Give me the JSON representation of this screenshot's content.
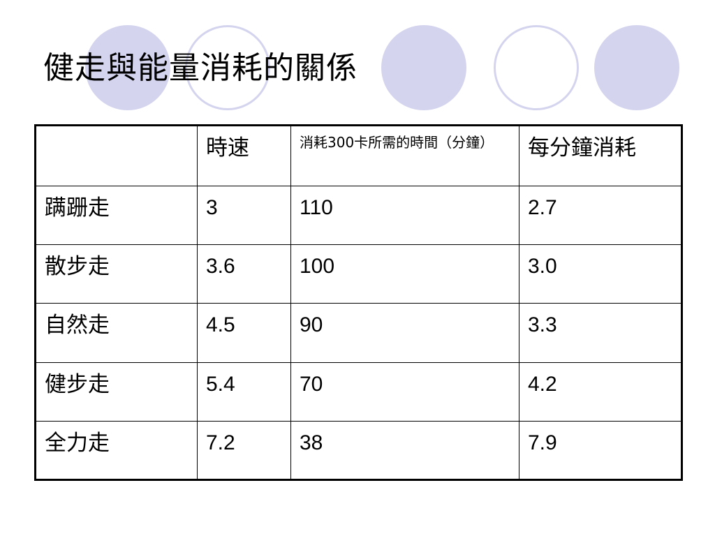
{
  "slide": {
    "title": "健走與能量消耗的關係"
  },
  "decor": {
    "circle_color": "#d4d4ee"
  },
  "table": {
    "headers": [
      "",
      "時速",
      "消耗300卡所需的時間（分鐘）",
      "每分鐘消耗"
    ],
    "rows": [
      {
        "name": "蹒跚走",
        "speed": "3",
        "minutes": "110",
        "per_minute": "2.7"
      },
      {
        "name": "散步走",
        "speed": "3.6",
        "minutes": "100",
        "per_minute": "3.0"
      },
      {
        "name": "自然走",
        "speed": "4.5",
        "minutes": "90",
        "per_minute": "3.3"
      },
      {
        "name": "健步走",
        "speed": "5.4",
        "minutes": "70",
        "per_minute": "4.2"
      },
      {
        "name": "全力走",
        "speed": "7.2",
        "minutes": "38",
        "per_minute": "7.9"
      }
    ]
  }
}
